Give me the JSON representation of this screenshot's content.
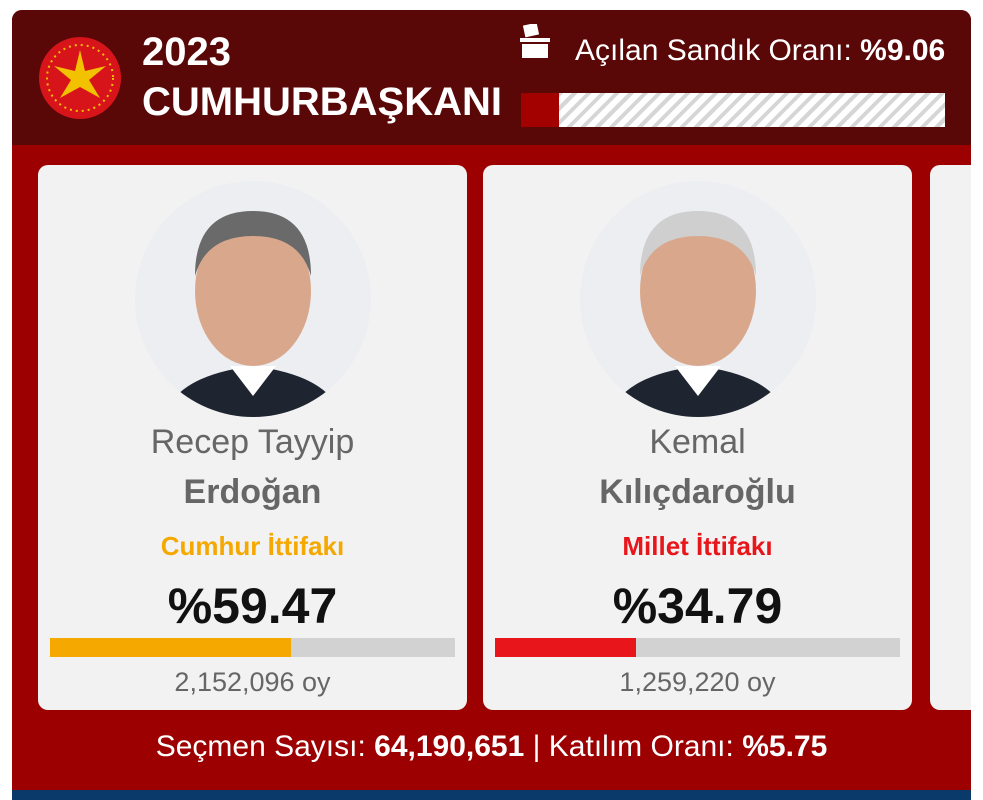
{
  "header": {
    "year": "2023",
    "title": "CUMHURBAŞKANI",
    "opened_label": "Açılan Sandık Oranı:",
    "opened_rate": {
      "value": 9.06,
      "label": "%9.06"
    }
  },
  "candidates": [
    {
      "first_name": "Recep Tayyip",
      "last_name": "Erdoğan",
      "alliance": "Cumhur İttifakı",
      "color": "#f5a800",
      "percent": {
        "value": 59.47,
        "label": "%59.47"
      },
      "votes": "2,152,096 oy"
    },
    {
      "first_name": "Kemal",
      "last_name": "Kılıçdaroğlu",
      "alliance": "Millet İttifakı",
      "color": "#e8161b",
      "percent": {
        "value": 34.79,
        "label": "%34.79"
      },
      "votes": "1,259,220 oy"
    }
  ],
  "footer": {
    "voters_label": "Seçmen Sayısı:",
    "voters": "64,190,651",
    "separator": "|",
    "turnout_label": "Katılım Oranı:",
    "turnout": "%5.75"
  }
}
